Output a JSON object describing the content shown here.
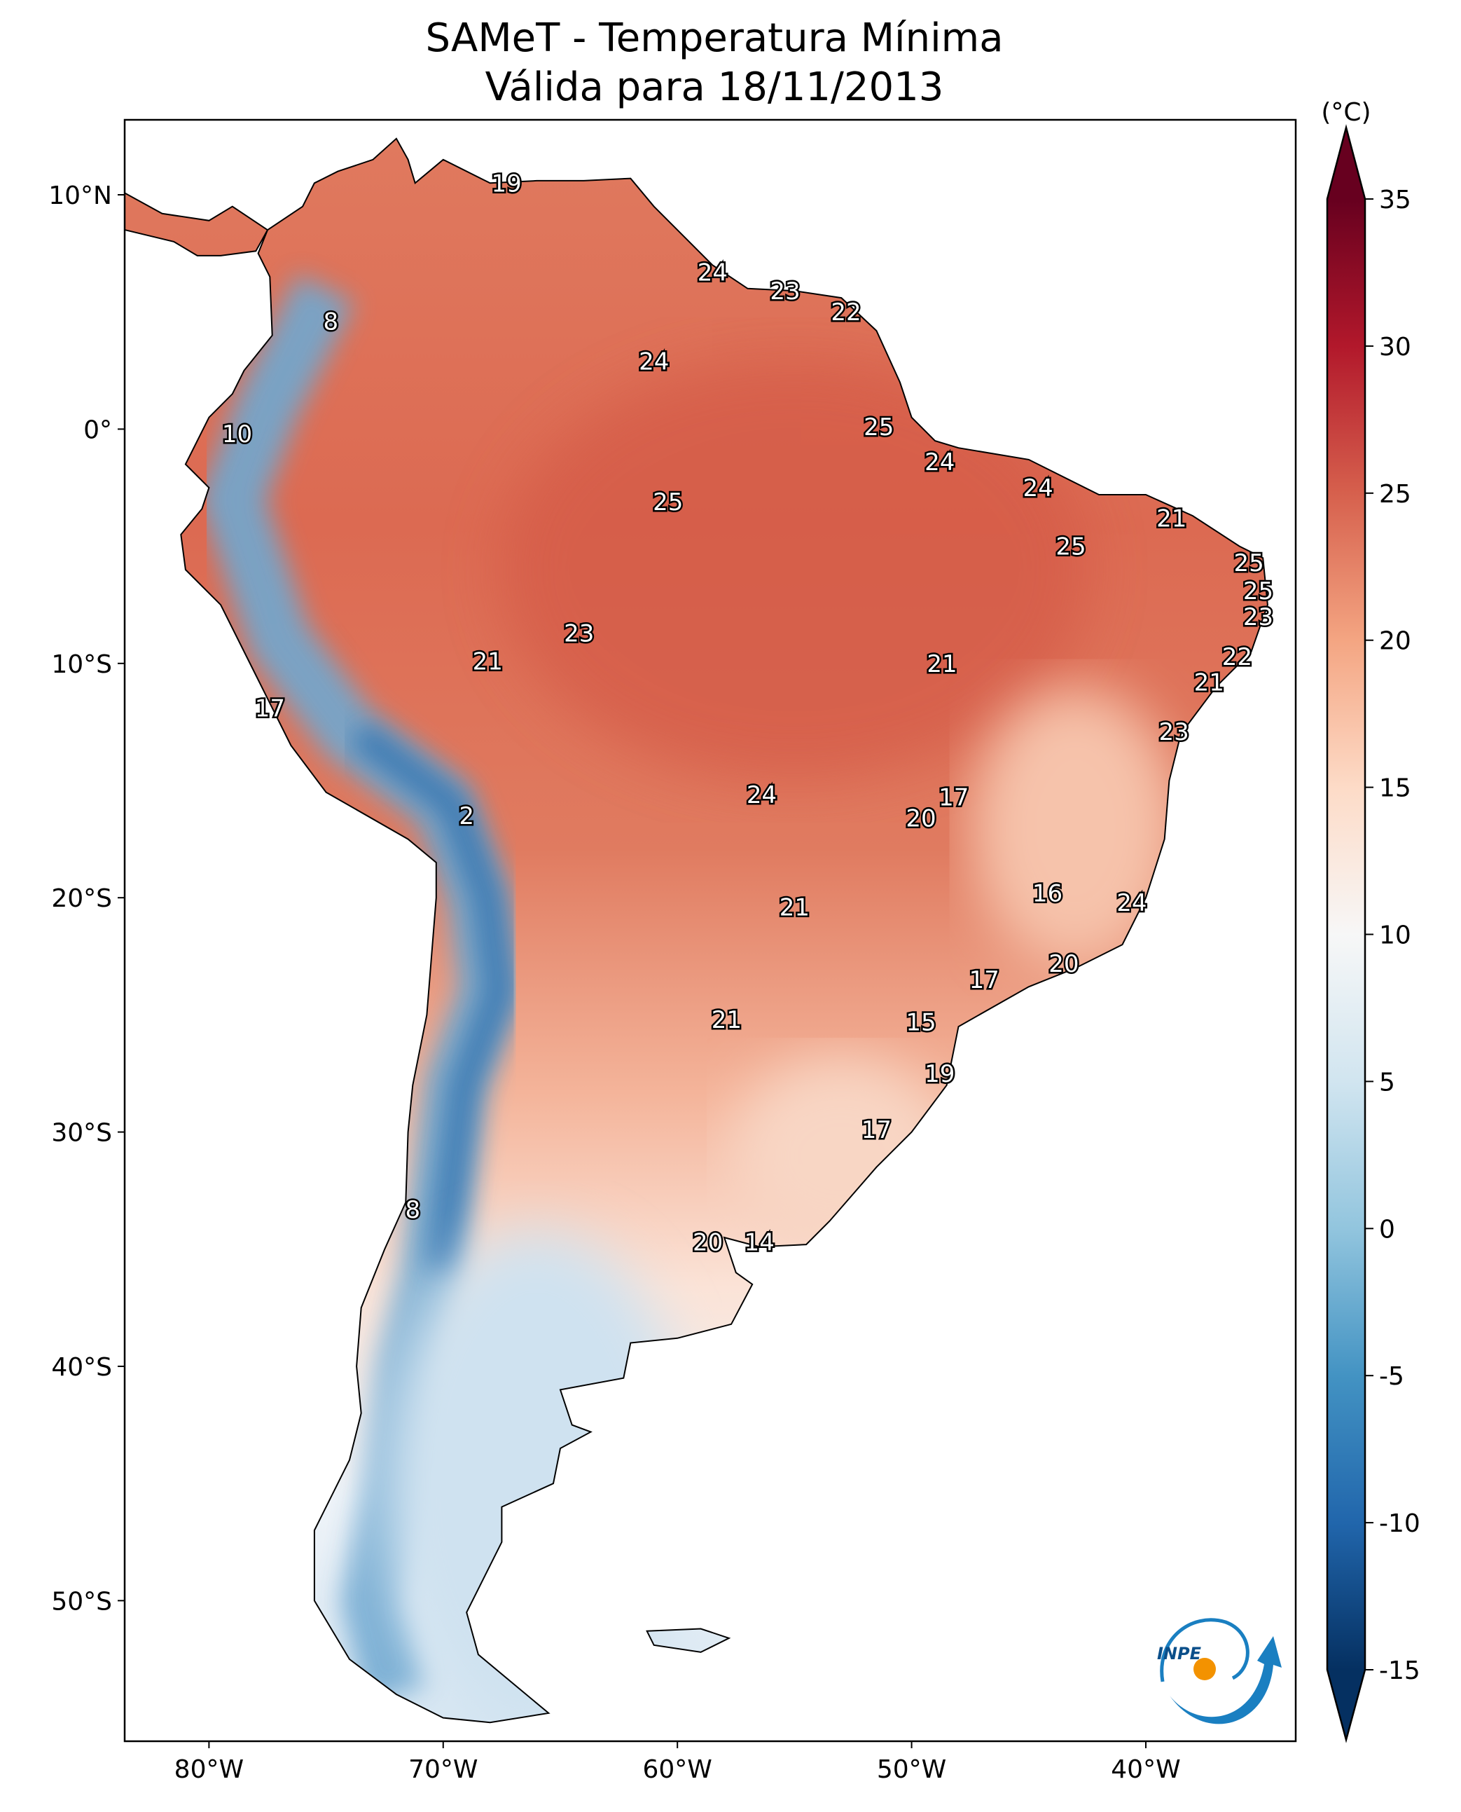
{
  "title": {
    "line1": "SAMeT - Temperatura Mínima",
    "line2": "Válida para 18/11/2013"
  },
  "colorbar": {
    "unit_label": "(°C)",
    "min": -15,
    "max": 35,
    "extend": "both",
    "colormap": "RdBu_r",
    "ticks": [
      "35",
      "30",
      "25",
      "20",
      "15",
      "10",
      "5",
      "0",
      "-5",
      "-10",
      "-15"
    ],
    "tick_values": [
      35,
      30,
      25,
      20,
      15,
      10,
      5,
      0,
      -5,
      -10,
      -15
    ],
    "colors": [
      "#053061",
      "#2166ac",
      "#4393c3",
      "#92c5de",
      "#d1e5f0",
      "#f7f7f7",
      "#fddbc7",
      "#f4a582",
      "#d6604d",
      "#b2182b",
      "#67001f"
    ]
  },
  "axes": {
    "lon_range": [
      -83.6,
      -33.6
    ],
    "lat_range": [
      -56,
      13.2
    ],
    "lon_ticks": [
      {
        "v": -80,
        "label": "80°W"
      },
      {
        "v": -70,
        "label": "70°W"
      },
      {
        "v": -60,
        "label": "60°W"
      },
      {
        "v": -50,
        "label": "50°W"
      },
      {
        "v": -40,
        "label": "40°W"
      }
    ],
    "lat_ticks": [
      {
        "v": 10,
        "label": "10°N"
      },
      {
        "v": 0,
        "label": "0°"
      },
      {
        "v": -10,
        "label": "10°S"
      },
      {
        "v": -20,
        "label": "20°S"
      },
      {
        "v": -30,
        "label": "30°S"
      },
      {
        "v": -40,
        "label": "40°S"
      },
      {
        "v": -50,
        "label": "50°S"
      }
    ]
  },
  "logo": {
    "text": "INPE"
  },
  "chart_data": {
    "type": "heatmap",
    "labels": [
      {
        "v": "19",
        "lon": -67.3,
        "lat": 10.5
      },
      {
        "v": "24",
        "lon": -58.5,
        "lat": 6.7
      },
      {
        "v": "23",
        "lon": -55.4,
        "lat": 5.9
      },
      {
        "v": "22",
        "lon": -52.8,
        "lat": 5.0
      },
      {
        "v": "8",
        "lon": -74.8,
        "lat": 4.6
      },
      {
        "v": "24",
        "lon": -61.0,
        "lat": 2.9
      },
      {
        "v": "10",
        "lon": -78.8,
        "lat": -0.2
      },
      {
        "v": "25",
        "lon": -51.4,
        "lat": 0.1
      },
      {
        "v": "24",
        "lon": -48.8,
        "lat": -1.4
      },
      {
        "v": "24",
        "lon": -44.6,
        "lat": -2.5
      },
      {
        "v": "25",
        "lon": -60.4,
        "lat": -3.1
      },
      {
        "v": "21",
        "lon": -38.9,
        "lat": -3.8
      },
      {
        "v": "25",
        "lon": -43.2,
        "lat": -5.0
      },
      {
        "v": "25",
        "lon": -35.6,
        "lat": -5.7
      },
      {
        "v": "25",
        "lon": -35.2,
        "lat": -6.9
      },
      {
        "v": "23",
        "lon": -35.2,
        "lat": -8.0
      },
      {
        "v": "23",
        "lon": -64.2,
        "lat": -8.7
      },
      {
        "v": "22",
        "lon": -36.1,
        "lat": -9.7
      },
      {
        "v": "21",
        "lon": -68.1,
        "lat": -9.9
      },
      {
        "v": "21",
        "lon": -48.7,
        "lat": -10.0
      },
      {
        "v": "21",
        "lon": -37.3,
        "lat": -10.8
      },
      {
        "v": "17",
        "lon": -77.4,
        "lat": -11.9
      },
      {
        "v": "23",
        "lon": -38.8,
        "lat": -12.9
      },
      {
        "v": "24",
        "lon": -56.4,
        "lat": -15.6
      },
      {
        "v": "17",
        "lon": -48.2,
        "lat": -15.7
      },
      {
        "v": "20",
        "lon": -49.6,
        "lat": -16.6
      },
      {
        "v": "2",
        "lon": -69.0,
        "lat": -16.5
      },
      {
        "v": "16",
        "lon": -44.2,
        "lat": -19.8
      },
      {
        "v": "24",
        "lon": -40.6,
        "lat": -20.2
      },
      {
        "v": "21",
        "lon": -55.0,
        "lat": -20.4
      },
      {
        "v": "20",
        "lon": -43.5,
        "lat": -22.8
      },
      {
        "v": "17",
        "lon": -46.9,
        "lat": -23.5
      },
      {
        "v": "21",
        "lon": -57.9,
        "lat": -25.2
      },
      {
        "v": "15",
        "lon": -49.6,
        "lat": -25.3
      },
      {
        "v": "19",
        "lon": -48.8,
        "lat": -27.5
      },
      {
        "v": "17",
        "lon": -51.5,
        "lat": -29.9
      },
      {
        "v": "8",
        "lon": -71.3,
        "lat": -33.3
      },
      {
        "v": "20",
        "lon": -58.7,
        "lat": -34.7
      },
      {
        "v": "14",
        "lon": -56.5,
        "lat": -34.7
      }
    ]
  }
}
